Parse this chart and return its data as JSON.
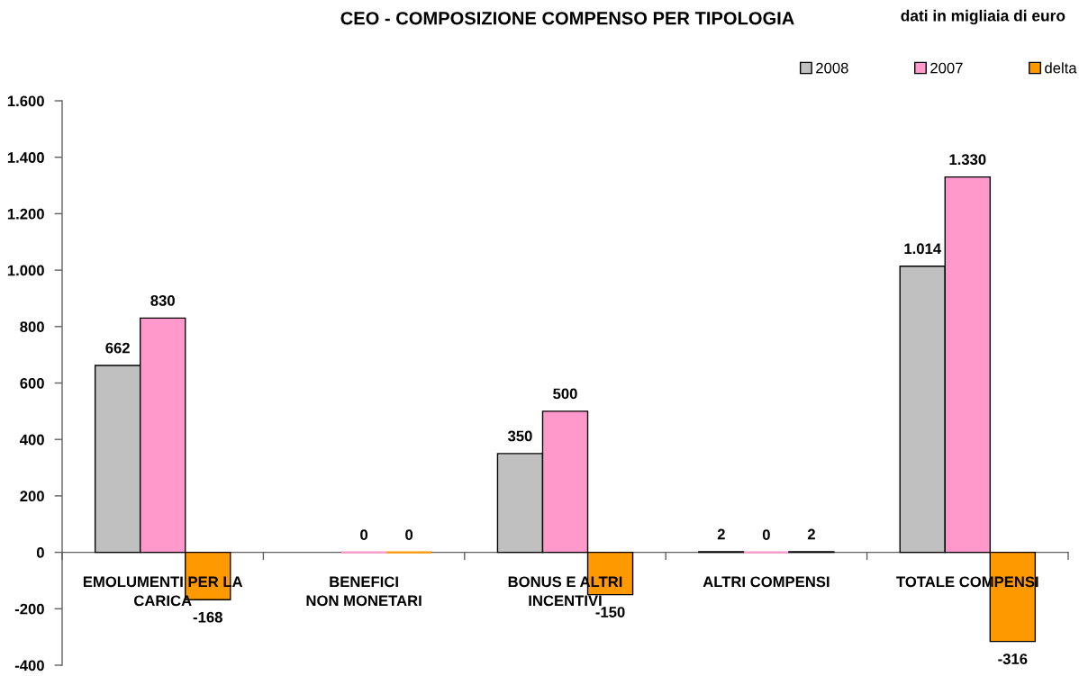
{
  "chart_data": {
    "type": "bar",
    "title": "CEO - COMPOSIZIONE COMPENSO PER TIPOLOGIA",
    "annotations": [
      "dati in migliaia di euro"
    ],
    "categories": [
      "EMOLUMENTI PER LA\nCARICA",
      "BENEFICI\nNON MONETARI",
      "BONUS E ALTRI\nINCENTIVI",
      "ALTRI COMPENSI",
      "TOTALE COMPENSI"
    ],
    "series": [
      {
        "name": "2008",
        "color": "#c0c0c0",
        "values": [
          662,
          null,
          350,
          2,
          1014
        ],
        "value_labels": [
          "662",
          null,
          "350",
          "2",
          "1.014"
        ]
      },
      {
        "name": "2007",
        "color": "#ff99cc",
        "values": [
          830,
          0,
          500,
          0,
          1330
        ],
        "value_labels": [
          "830",
          "0",
          "500",
          "0",
          "1.330"
        ]
      },
      {
        "name": "delta",
        "color": "#ff9900",
        "values": [
          -168,
          0,
          -150,
          2,
          -316
        ],
        "value_labels": [
          "-168",
          "0",
          "-150",
          "2",
          "-316"
        ]
      }
    ],
    "ylim": [
      -400,
      1600
    ],
    "yticks": [
      -400,
      -200,
      0,
      200,
      400,
      600,
      800,
      {
        "value": 1000,
        "label": "1.000"
      },
      {
        "value": 1200,
        "label": "1.200"
      },
      {
        "value": 1400,
        "label": "1.400"
      },
      {
        "value": 1600,
        "label": "1.600"
      }
    ],
    "legend": "top right"
  }
}
